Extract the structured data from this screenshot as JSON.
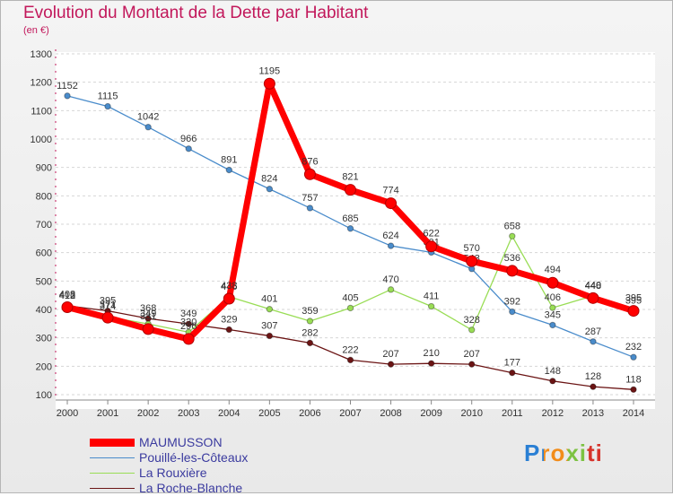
{
  "title": "Evolution du Montant de la Dette par Habitant",
  "unit": "(en €)",
  "logo": "Proxiti",
  "chart_data": {
    "type": "line",
    "x": [
      "2000",
      "2001",
      "2002",
      "2003",
      "2004",
      "2005",
      "2006",
      "2007",
      "2008",
      "2009",
      "2010",
      "2011",
      "2012",
      "2013",
      "2014"
    ],
    "ylim": [
      100,
      1300
    ],
    "yticks": [
      100,
      200,
      300,
      400,
      500,
      600,
      700,
      800,
      900,
      1000,
      1100,
      1200,
      1300
    ],
    "grid": "horizontal dashed",
    "legend_position": "bottom-left",
    "series": [
      {
        "name": "MAUMUSSON",
        "color": "#ff0000",
        "values": [
          408,
          371,
          331,
          296,
          438,
          1195,
          876,
          821,
          774,
          622,
          570,
          536,
          494,
          440,
          395
        ]
      },
      {
        "name": "Pouillé-les-Côteaux",
        "color": "#4a8ccb",
        "values": [
          1152,
          1115,
          1042,
          966,
          891,
          824,
          757,
          685,
          624,
          601,
          543,
          392,
          345,
          287,
          232
        ]
      },
      {
        "name": "La Rouxière",
        "color": "#99dd55",
        "values": [
          412,
          374,
          349,
          320,
          445,
          401,
          359,
          405,
          470,
          411,
          328,
          658,
          406,
          448,
          395
        ]
      },
      {
        "name": "La Roche-Blanche",
        "color": "#6b1414",
        "values": [
          413,
          395,
          368,
          349,
          329,
          307,
          282,
          222,
          207,
          210,
          207,
          177,
          148,
          128,
          118
        ]
      }
    ]
  }
}
